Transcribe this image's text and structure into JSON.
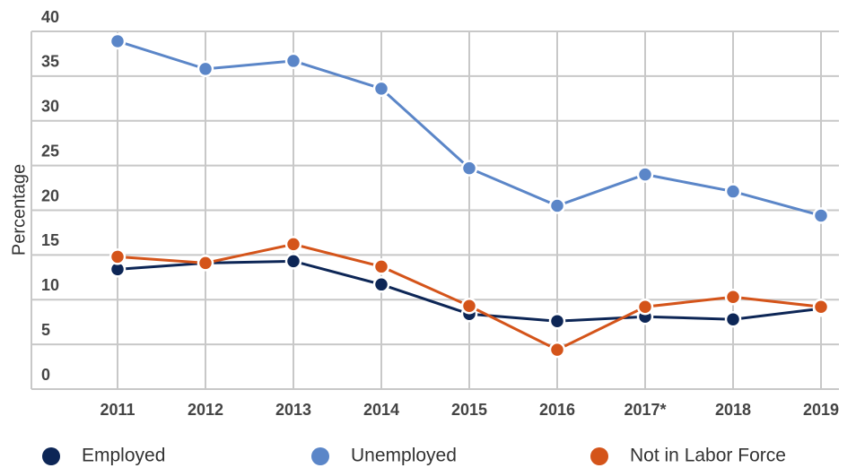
{
  "chart_data": {
    "type": "line",
    "y_label": "Percentage",
    "categories": [
      "2011",
      "2012",
      "2013",
      "2014",
      "2015",
      "2016",
      "2017*",
      "2018",
      "2019"
    ],
    "series": [
      {
        "name": "Employed",
        "color": "#0d2656",
        "values": [
          13.4,
          14.1,
          14.3,
          11.7,
          8.4,
          7.6,
          8.1,
          7.8,
          9.0
        ]
      },
      {
        "name": "Unemployed",
        "color": "#5b86c8",
        "values": [
          38.9,
          35.8,
          36.7,
          33.6,
          24.7,
          20.5,
          24.0,
          22.1,
          19.4
        ]
      },
      {
        "name": "Not in Labor Force",
        "color": "#d4541a",
        "values": [
          14.8,
          14.1,
          16.2,
          13.7,
          9.3,
          4.4,
          9.2,
          10.3,
          9.2
        ]
      }
    ],
    "ylim": [
      0,
      40
    ],
    "yticks": [
      0,
      5,
      10,
      15,
      20,
      25,
      30,
      35,
      40
    ],
    "grid": true,
    "legend": "bottom"
  }
}
